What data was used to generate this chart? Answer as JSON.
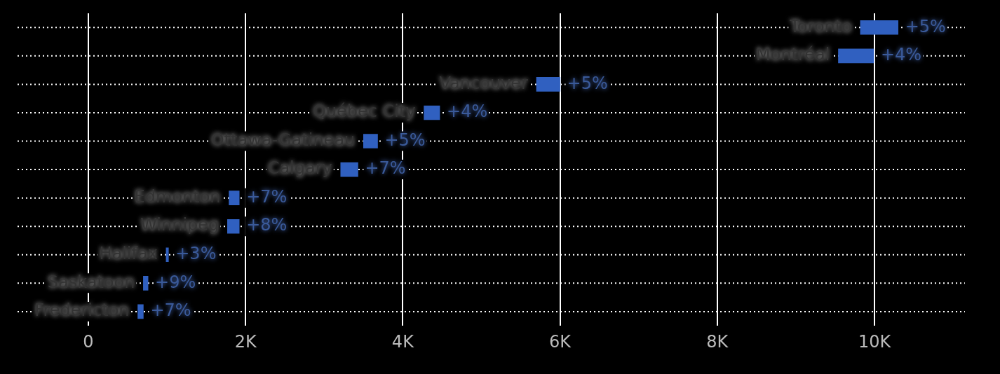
{
  "chart_data": {
    "type": "bar",
    "orientation": "horizontal",
    "categories": [
      "Toronto",
      "Montréal",
      "Vancouver",
      "Québec City",
      "Ottawa-Gatineau",
      "Calgary",
      "Edmonton",
      "Winnipeg",
      "Halifax",
      "Saskatoon",
      "Fredericton"
    ],
    "base": [
      9820,
      9540,
      5700,
      4270,
      3500,
      3210,
      1790,
      1770,
      990,
      700,
      630
    ],
    "values": [
      480,
      450,
      300,
      200,
      180,
      220,
      130,
      150,
      30,
      60,
      70
    ],
    "annotations": [
      {
        "text": "+5%",
        "x": 10300,
        "y": "Toronto"
      },
      {
        "text": "+4%",
        "x": 9990,
        "y": "Montréal"
      },
      {
        "text": "+5%",
        "x": 6000,
        "y": "Vancouver"
      },
      {
        "text": "+4%",
        "x": 4470,
        "y": "Québec City"
      },
      {
        "text": "+5%",
        "x": 3680,
        "y": "Ottawa-Gatineau"
      },
      {
        "text": "+7%",
        "x": 3430,
        "y": "Calgary"
      },
      {
        "text": "+7%",
        "x": 1920,
        "y": "Edmonton"
      },
      {
        "text": "+8%",
        "x": 1920,
        "y": "Winnipeg"
      },
      {
        "text": "+3%",
        "x": 1020,
        "y": "Halifax"
      },
      {
        "text": "+9%",
        "x": 760,
        "y": "Saskatoon"
      },
      {
        "text": "+7%",
        "x": 700,
        "y": "Fredericton"
      }
    ],
    "color": "#3060c0",
    "xlim": [
      -900,
      11150
    ],
    "xticks": [
      0,
      {
        "value": 2000,
        "label": "2K"
      },
      {
        "value": 4000,
        "label": "4K"
      },
      {
        "value": 6000,
        "label": "6K"
      },
      {
        "value": 8000,
        "label": "8K"
      },
      {
        "value": 10000,
        "label": "10K"
      }
    ],
    "grid": true,
    "legend": false
  }
}
